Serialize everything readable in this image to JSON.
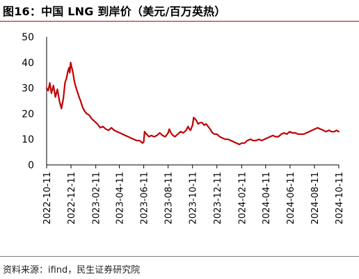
{
  "header": {
    "title": "图16：中国 LNG 到岸价（美元/百万英热）"
  },
  "footer": {
    "source": "资料来源：ifind，民生证券研究院"
  },
  "colors": {
    "accent": "#c00000",
    "line": "#c00000",
    "axis": "#000000"
  },
  "chart_data": {
    "type": "line",
    "title": "",
    "xlabel": "",
    "ylabel": "",
    "ylim": [
      0,
      50
    ],
    "yticks": [
      0,
      10,
      20,
      30,
      40,
      50
    ],
    "xlim": [
      "2022-10-11",
      "2024-10-11"
    ],
    "xticks": [
      "2022-10-11",
      "2022-12-11",
      "2023-02-11",
      "2023-04-11",
      "2023-06-11",
      "2023-08-11",
      "2023-10-11",
      "2023-12-11",
      "2024-02-11",
      "2024-04-11",
      "2024-06-11",
      "2024-08-11",
      "2024-10-11"
    ],
    "grid": false,
    "legend": "none",
    "series": [
      {
        "name": "",
        "points": [
          [
            "2022-10-11",
            30.0
          ],
          [
            "2022-10-15",
            29.0
          ],
          [
            "2022-10-19",
            32.0
          ],
          [
            "2022-10-23",
            28.0
          ],
          [
            "2022-10-28",
            31.0
          ],
          [
            "2022-11-02",
            26.5
          ],
          [
            "2022-11-07",
            29.5
          ],
          [
            "2022-11-12",
            25.0
          ],
          [
            "2022-11-17",
            22.0
          ],
          [
            "2022-11-22",
            26.0
          ],
          [
            "2022-11-26",
            32.0
          ],
          [
            "2022-11-30",
            34.0
          ],
          [
            "2022-12-03",
            36.5
          ],
          [
            "2022-12-06",
            38.0
          ],
          [
            "2022-12-08",
            36.0
          ],
          [
            "2022-12-10",
            40.0
          ],
          [
            "2022-12-13",
            38.0
          ],
          [
            "2022-12-16",
            36.0
          ],
          [
            "2022-12-19",
            33.0
          ],
          [
            "2022-12-22",
            31.0
          ],
          [
            "2022-12-26",
            29.0
          ],
          [
            "2022-12-30",
            27.0
          ],
          [
            "2023-01-04",
            25.0
          ],
          [
            "2023-01-09",
            22.5
          ],
          [
            "2023-01-14",
            21.0
          ],
          [
            "2023-01-19",
            20.0
          ],
          [
            "2023-01-25",
            19.5
          ],
          [
            "2023-02-01",
            18.0
          ],
          [
            "2023-02-08",
            17.0
          ],
          [
            "2023-02-15",
            16.0
          ],
          [
            "2023-02-22",
            14.5
          ],
          [
            "2023-03-01",
            15.0
          ],
          [
            "2023-03-08",
            14.0
          ],
          [
            "2023-03-15",
            13.5
          ],
          [
            "2023-03-22",
            14.5
          ],
          [
            "2023-03-29",
            13.5
          ],
          [
            "2023-04-05",
            13.0
          ],
          [
            "2023-04-12",
            12.5
          ],
          [
            "2023-04-19",
            12.0
          ],
          [
            "2023-04-26",
            11.5
          ],
          [
            "2023-05-03",
            11.0
          ],
          [
            "2023-05-10",
            10.5
          ],
          [
            "2023-05-17",
            10.0
          ],
          [
            "2023-05-24",
            9.5
          ],
          [
            "2023-05-31",
            9.5
          ],
          [
            "2023-06-05",
            9.0
          ],
          [
            "2023-06-08",
            8.5
          ],
          [
            "2023-06-11",
            9.0
          ],
          [
            "2023-06-13",
            13.0
          ],
          [
            "2023-06-18",
            12.0
          ],
          [
            "2023-06-24",
            11.0
          ],
          [
            "2023-06-30",
            11.5
          ],
          [
            "2023-07-07",
            11.0
          ],
          [
            "2023-07-14",
            11.5
          ],
          [
            "2023-07-21",
            12.5
          ],
          [
            "2023-07-28",
            11.5
          ],
          [
            "2023-08-04",
            11.0
          ],
          [
            "2023-08-11",
            12.5
          ],
          [
            "2023-08-14",
            14.0
          ],
          [
            "2023-08-18",
            12.5
          ],
          [
            "2023-08-23",
            11.5
          ],
          [
            "2023-08-28",
            11.0
          ],
          [
            "2023-09-04",
            12.0
          ],
          [
            "2023-09-11",
            13.0
          ],
          [
            "2023-09-18",
            12.5
          ],
          [
            "2023-09-25",
            13.5
          ],
          [
            "2023-09-30",
            15.0
          ],
          [
            "2023-10-03",
            14.0
          ],
          [
            "2023-10-06",
            13.5
          ],
          [
            "2023-10-11",
            15.5
          ],
          [
            "2023-10-14",
            18.5
          ],
          [
            "2023-10-17",
            18.0
          ],
          [
            "2023-10-20",
            17.5
          ],
          [
            "2023-10-25",
            16.0
          ],
          [
            "2023-10-30",
            16.5
          ],
          [
            "2023-11-04",
            16.5
          ],
          [
            "2023-11-09",
            15.5
          ],
          [
            "2023-11-14",
            16.0
          ],
          [
            "2023-11-19",
            15.0
          ],
          [
            "2023-11-24",
            14.0
          ],
          [
            "2023-11-30",
            12.5
          ],
          [
            "2023-12-05",
            12.0
          ],
          [
            "2023-12-11",
            12.0
          ],
          [
            "2023-12-18",
            11.0
          ],
          [
            "2023-12-25",
            10.5
          ],
          [
            "2024-01-01",
            10.0
          ],
          [
            "2024-01-08",
            10.0
          ],
          [
            "2024-01-15",
            9.5
          ],
          [
            "2024-01-22",
            9.0
          ],
          [
            "2024-01-29",
            8.5
          ],
          [
            "2024-02-05",
            8.0
          ],
          [
            "2024-02-11",
            8.5
          ],
          [
            "2024-02-18",
            8.5
          ],
          [
            "2024-02-25",
            9.5
          ],
          [
            "2024-03-04",
            10.0
          ],
          [
            "2024-03-11",
            9.5
          ],
          [
            "2024-03-18",
            9.5
          ],
          [
            "2024-03-25",
            10.0
          ],
          [
            "2024-04-01",
            9.5
          ],
          [
            "2024-04-08",
            10.0
          ],
          [
            "2024-04-15",
            10.5
          ],
          [
            "2024-04-22",
            11.0
          ],
          [
            "2024-04-29",
            11.5
          ],
          [
            "2024-05-06",
            11.0
          ],
          [
            "2024-05-13",
            11.0
          ],
          [
            "2024-05-20",
            12.0
          ],
          [
            "2024-05-27",
            12.5
          ],
          [
            "2024-06-03",
            12.0
          ],
          [
            "2024-06-10",
            13.0
          ],
          [
            "2024-06-17",
            12.5
          ],
          [
            "2024-06-24",
            12.5
          ],
          [
            "2024-07-01",
            12.0
          ],
          [
            "2024-07-08",
            12.0
          ],
          [
            "2024-07-15",
            12.0
          ],
          [
            "2024-07-22",
            12.5
          ],
          [
            "2024-07-29",
            13.0
          ],
          [
            "2024-08-05",
            13.5
          ],
          [
            "2024-08-12",
            14.0
          ],
          [
            "2024-08-19",
            14.5
          ],
          [
            "2024-08-26",
            14.0
          ],
          [
            "2024-09-02",
            13.5
          ],
          [
            "2024-09-09",
            13.0
          ],
          [
            "2024-09-16",
            13.5
          ],
          [
            "2024-09-23",
            13.0
          ],
          [
            "2024-09-30",
            13.0
          ],
          [
            "2024-10-05",
            13.5
          ],
          [
            "2024-10-11",
            13.0
          ]
        ]
      }
    ]
  }
}
